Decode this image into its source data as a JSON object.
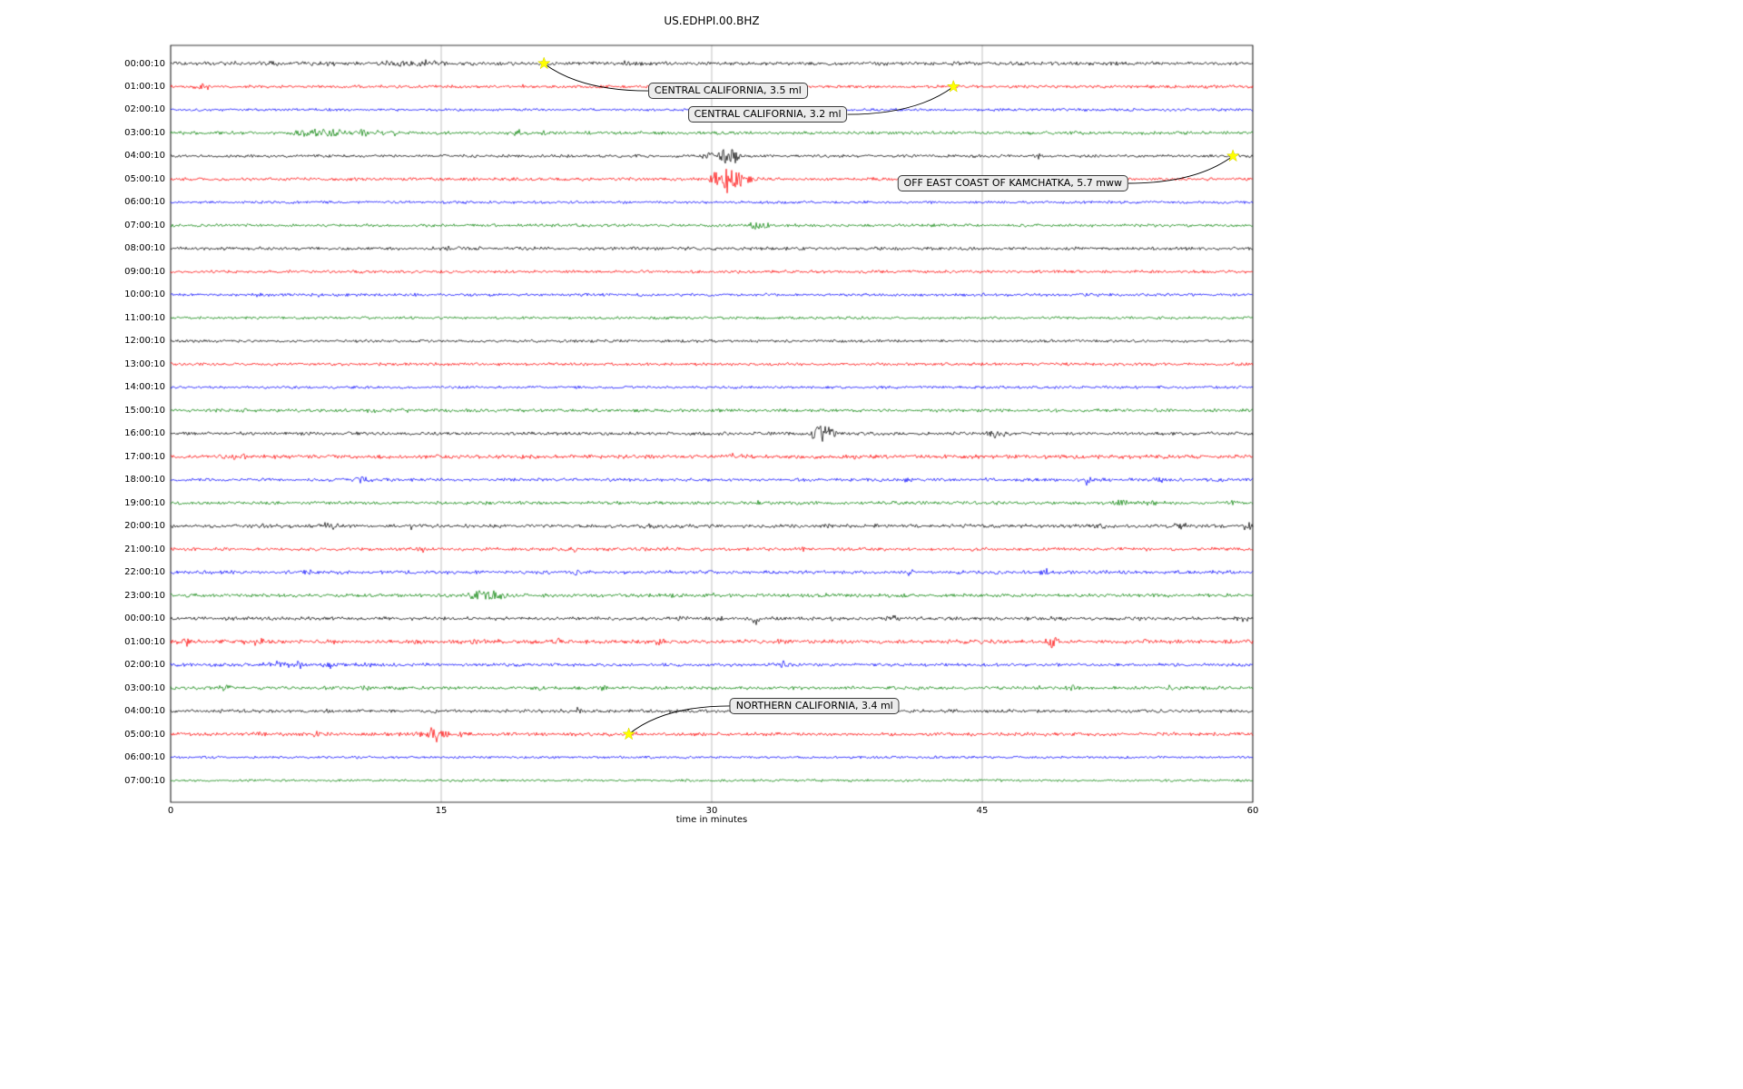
{
  "chart_data": {
    "type": "line",
    "subtype": "seismogram-dayplot",
    "title": "US.EDHPI.00.BHZ",
    "xlabel": "time in minutes",
    "x_range_minutes": [
      0,
      60
    ],
    "x_ticks": [
      0,
      15,
      30,
      45,
      60
    ],
    "grid": "vertical",
    "legend": "none",
    "colors_cycle": [
      "#000000",
      "#ff0000",
      "#0000ff",
      "#008000"
    ],
    "rows": [
      {
        "label": "00:00:10",
        "color": "#000000",
        "amp": 1.3,
        "bursts": [
          [
            5.2,
            1.2,
            1.5
          ],
          [
            8.5,
            1.0,
            2.0
          ],
          [
            12.8,
            2.6,
            0.9
          ],
          [
            14.5,
            2.2,
            1.2
          ],
          [
            20.7,
            1.5,
            0.2
          ],
          [
            23.5,
            2.0,
            0.3
          ],
          [
            25.5,
            1.8,
            0.5
          ],
          [
            26.5,
            1.5,
            0.4
          ]
        ]
      },
      {
        "label": "01:00:10",
        "color": "#ff0000",
        "amp": 1.1,
        "bursts": [
          [
            1.8,
            2.6,
            0.4
          ],
          [
            19.5,
            1.0,
            0.3
          ]
        ]
      },
      {
        "label": "02:00:10",
        "color": "#0000ff",
        "amp": 1.0,
        "bursts": []
      },
      {
        "label": "03:00:10",
        "color": "#008000",
        "amp": 1.2,
        "bursts": [
          [
            7.2,
            3.5,
            0.5
          ],
          [
            8.0,
            3.0,
            0.6
          ],
          [
            9.0,
            2.5,
            0.8
          ],
          [
            10.5,
            2.8,
            0.5
          ],
          [
            11.5,
            2.2,
            0.5
          ],
          [
            12.3,
            2.5,
            0.3
          ],
          [
            19.2,
            2.8,
            0.25
          ],
          [
            20.8,
            2.5,
            0.2
          ],
          [
            25.0,
            1.8,
            0.3
          ]
        ]
      },
      {
        "label": "04:00:10",
        "color": "#000000",
        "amp": 1.1,
        "bursts": [
          [
            29.8,
            4.0,
            0.3
          ],
          [
            30.8,
            8.0,
            0.4
          ],
          [
            31.2,
            6.0,
            0.3
          ],
          [
            48.2,
            2.5,
            0.15
          ],
          [
            59.0,
            1.5,
            0.3
          ]
        ]
      },
      {
        "label": "05:00:10",
        "color": "#ff0000",
        "amp": 1.2,
        "bursts": [
          [
            30.2,
            6.0,
            0.3
          ],
          [
            30.9,
            14.0,
            0.35
          ],
          [
            31.4,
            9.0,
            0.3
          ],
          [
            32.0,
            4.0,
            0.3
          ]
        ]
      },
      {
        "label": "06:00:10",
        "color": "#0000ff",
        "amp": 1.0,
        "bursts": []
      },
      {
        "label": "07:00:10",
        "color": "#008000",
        "amp": 1.1,
        "bursts": [
          [
            32.5,
            5.0,
            0.35
          ],
          [
            33.0,
            2.0,
            0.4
          ]
        ]
      },
      {
        "label": "08:00:10",
        "color": "#000000",
        "amp": 1.2,
        "bursts": [
          [
            15.5,
            0.8,
            1.5
          ]
        ]
      },
      {
        "label": "09:00:10",
        "color": "#ff0000",
        "amp": 1.1,
        "bursts": []
      },
      {
        "label": "10:00:10",
        "color": "#0000ff",
        "amp": 1.1,
        "bursts": [
          [
            5.0,
            0.8,
            0.8
          ],
          [
            8.0,
            0.8,
            0.8
          ]
        ]
      },
      {
        "label": "11:00:10",
        "color": "#008000",
        "amp": 1.0,
        "bursts": []
      },
      {
        "label": "12:00:10",
        "color": "#000000",
        "amp": 1.0,
        "bursts": []
      },
      {
        "label": "13:00:10",
        "color": "#ff0000",
        "amp": 1.1,
        "bursts": []
      },
      {
        "label": "14:00:10",
        "color": "#0000ff",
        "amp": 1.0,
        "bursts": [
          [
            22.5,
            1.8,
            0.2
          ]
        ]
      },
      {
        "label": "15:00:10",
        "color": "#008000",
        "amp": 1.2,
        "bursts": [
          [
            4.2,
            2.2,
            0.5
          ],
          [
            11.2,
            2.2,
            0.4
          ],
          [
            13.0,
            1.5,
            0.3
          ]
        ]
      },
      {
        "label": "16:00:10",
        "color": "#000000",
        "amp": 1.2,
        "bursts": [
          [
            36.0,
            9.0,
            0.5
          ],
          [
            36.6,
            5.0,
            0.4
          ],
          [
            45.6,
            3.5,
            0.4
          ],
          [
            46.2,
            2.0,
            0.3
          ]
        ]
      },
      {
        "label": "17:00:10",
        "color": "#ff0000",
        "amp": 1.4,
        "bursts": [
          [
            3.8,
            2.0,
            0.5
          ],
          [
            31.0,
            2.0,
            0.8
          ],
          [
            38.0,
            1.5,
            0.5
          ],
          [
            41.0,
            1.5,
            0.4
          ]
        ]
      },
      {
        "label": "18:00:10",
        "color": "#0000ff",
        "amp": 1.2,
        "bursts": [
          [
            10.5,
            3.5,
            0.3
          ],
          [
            11.0,
            2.5,
            0.3
          ],
          [
            40.9,
            3.0,
            0.25
          ],
          [
            45.5,
            2.0,
            0.3
          ],
          [
            50.8,
            4.0,
            0.2
          ],
          [
            54.8,
            2.0,
            0.4
          ],
          [
            58.0,
            2.0,
            0.5
          ]
        ]
      },
      {
        "label": "19:00:10",
        "color": "#008000",
        "amp": 1.2,
        "bursts": [
          [
            32.6,
            2.5,
            0.2
          ],
          [
            52.5,
            2.5,
            0.8
          ],
          [
            54.5,
            2.0,
            0.5
          ],
          [
            59.0,
            2.0,
            0.4
          ]
        ]
      },
      {
        "label": "20:00:10",
        "color": "#000000",
        "amp": 1.3,
        "bursts": [
          [
            4.8,
            2.0,
            0.6
          ],
          [
            8.8,
            2.2,
            0.7
          ],
          [
            13.3,
            1.8,
            0.4
          ],
          [
            26.6,
            2.0,
            0.6
          ],
          [
            27.5,
            1.8,
            0.4
          ],
          [
            36.4,
            2.2,
            0.3
          ],
          [
            39.0,
            1.5,
            0.3
          ],
          [
            44.0,
            2.0,
            0.5
          ],
          [
            51.5,
            1.5,
            0.4
          ],
          [
            56.0,
            1.8,
            0.5
          ],
          [
            59.7,
            4.0,
            0.25
          ]
        ]
      },
      {
        "label": "21:00:10",
        "color": "#ff0000",
        "amp": 1.2,
        "bursts": [
          [
            13.9,
            2.2,
            0.3
          ],
          [
            22.3,
            2.0,
            0.3
          ],
          [
            27.4,
            2.0,
            0.25
          ],
          [
            29.2,
            2.0,
            0.3
          ],
          [
            35.0,
            2.2,
            0.25
          ],
          [
            54.2,
            2.5,
            0.3
          ],
          [
            58.0,
            1.5,
            0.3
          ]
        ]
      },
      {
        "label": "22:00:10",
        "color": "#0000ff",
        "amp": 1.3,
        "bursts": [
          [
            7.5,
            2.5,
            0.4
          ],
          [
            22.5,
            1.8,
            0.3
          ],
          [
            41.0,
            3.0,
            0.3
          ],
          [
            48.5,
            2.8,
            0.25
          ],
          [
            52.0,
            1.5,
            0.3
          ]
        ]
      },
      {
        "label": "23:00:10",
        "color": "#008000",
        "amp": 1.3,
        "bursts": [
          [
            17.0,
            4.5,
            0.4
          ],
          [
            17.8,
            5.0,
            0.5
          ],
          [
            18.4,
            3.0,
            0.4
          ],
          [
            27.7,
            2.5,
            0.3
          ],
          [
            30.0,
            2.5,
            0.3
          ],
          [
            36.5,
            1.5,
            0.3
          ]
        ]
      },
      {
        "label": "00:00:10",
        "color": "#000000",
        "amp": 1.3,
        "bursts": [
          [
            28.3,
            2.5,
            0.3
          ],
          [
            30.5,
            2.5,
            0.3
          ],
          [
            32.4,
            5.0,
            0.2
          ],
          [
            36.8,
            2.0,
            0.3
          ],
          [
            40.0,
            2.5,
            0.25
          ],
          [
            44.0,
            1.8,
            0.3
          ],
          [
            48.8,
            2.0,
            0.3
          ],
          [
            51.0,
            2.5,
            0.2
          ],
          [
            59.6,
            2.0,
            0.3
          ]
        ]
      },
      {
        "label": "01:00:10",
        "color": "#ff0000",
        "amp": 1.4,
        "bursts": [
          [
            0.8,
            3.0,
            0.4
          ],
          [
            4.5,
            2.5,
            0.8
          ],
          [
            9.0,
            2.0,
            0.5
          ],
          [
            13.7,
            3.0,
            0.4
          ],
          [
            16.8,
            2.5,
            0.5
          ],
          [
            18.0,
            2.0,
            0.4
          ],
          [
            21.5,
            2.5,
            0.5
          ],
          [
            23.0,
            2.0,
            0.4
          ],
          [
            27.0,
            2.5,
            0.5
          ],
          [
            33.8,
            2.0,
            0.4
          ],
          [
            45.0,
            2.5,
            0.4
          ],
          [
            48.9,
            5.0,
            0.3
          ],
          [
            54.0,
            2.0,
            0.4
          ],
          [
            59.7,
            2.5,
            0.3
          ]
        ]
      },
      {
        "label": "02:00:10",
        "color": "#0000ff",
        "amp": 1.2,
        "bursts": [
          [
            5.8,
            3.0,
            0.7
          ],
          [
            7.0,
            2.5,
            0.6
          ],
          [
            8.7,
            2.5,
            0.4
          ],
          [
            10.8,
            2.0,
            0.3
          ],
          [
            34.0,
            2.5,
            0.4
          ],
          [
            40.0,
            1.5,
            0.3
          ]
        ]
      },
      {
        "label": "03:00:10",
        "color": "#008000",
        "amp": 1.2,
        "bursts": [
          [
            3.0,
            2.2,
            0.5
          ],
          [
            10.8,
            4.5,
            0.2
          ],
          [
            20.4,
            2.0,
            0.4
          ],
          [
            24.0,
            1.8,
            0.3
          ],
          [
            29.9,
            2.0,
            0.3
          ],
          [
            41.5,
            1.5,
            0.3
          ],
          [
            48.0,
            2.8,
            0.3
          ],
          [
            50.0,
            2.2,
            0.3
          ],
          [
            55.5,
            1.5,
            0.3
          ]
        ]
      },
      {
        "label": "04:00:10",
        "color": "#000000",
        "amp": 1.2,
        "bursts": [
          [
            8.6,
            1.8,
            0.4
          ],
          [
            14.6,
            2.0,
            0.3
          ],
          [
            22.6,
            2.5,
            0.2
          ],
          [
            30.0,
            1.2,
            0.4
          ]
        ]
      },
      {
        "label": "05:00:10",
        "color": "#ff0000",
        "amp": 1.3,
        "bursts": [
          [
            4.7,
            2.5,
            0.5
          ],
          [
            8.0,
            2.0,
            0.4
          ],
          [
            13.7,
            2.5,
            0.3
          ],
          [
            14.6,
            13.0,
            0.25
          ],
          [
            15.1,
            4.0,
            0.3
          ],
          [
            16.2,
            2.5,
            0.3
          ],
          [
            25.6,
            2.0,
            0.3
          ]
        ]
      },
      {
        "label": "06:00:10",
        "color": "#0000ff",
        "amp": 0.9,
        "bursts": []
      },
      {
        "label": "07:00:10",
        "color": "#008000",
        "amp": 0.9,
        "bursts": []
      }
    ],
    "events": [
      {
        "label": "CENTRAL CALIFORNIA, 3.5 ml",
        "row": 0,
        "minute": 20.7,
        "box_minute": 30.9,
        "box_row": 1.18,
        "marker": "yellow-star",
        "marker_color": "#ffff00"
      },
      {
        "label": "CENTRAL CALIFORNIA, 3.2 ml",
        "row": 1,
        "minute": 43.4,
        "box_minute": 33.1,
        "box_row": 2.2,
        "marker": "yellow-star",
        "marker_color": "#ffff00"
      },
      {
        "label": "OFF EAST COAST OF KAMCHATKA, 5.7 mww",
        "row": 4,
        "minute": 58.9,
        "box_minute": 46.7,
        "box_row": 5.18,
        "marker": "yellow-star",
        "marker_color": "#ffff00"
      },
      {
        "label": "NORTHERN CALIFORNIA, 3.4 ml",
        "row": 29,
        "minute": 25.4,
        "box_minute": 35.7,
        "box_row": 27.78,
        "marker": "yellow-star",
        "marker_color": "#ffff00"
      }
    ]
  }
}
